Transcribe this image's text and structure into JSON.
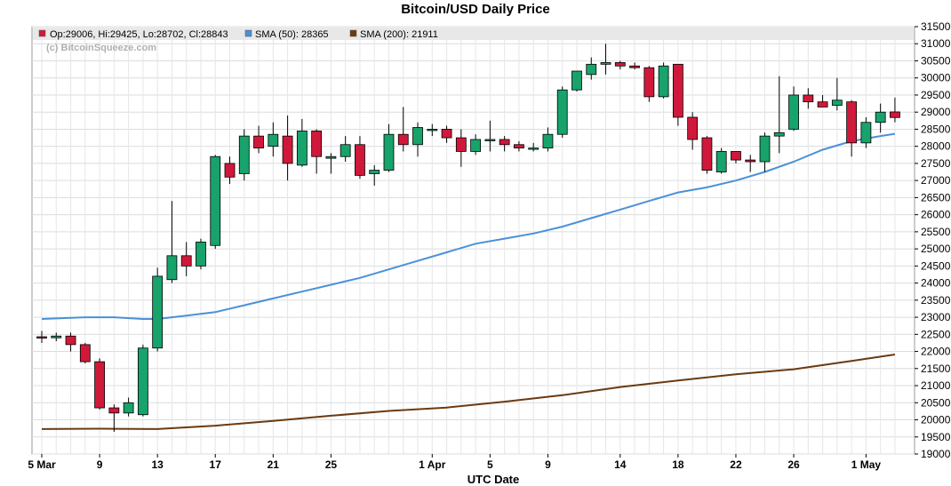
{
  "chart_data": {
    "type": "candlestick",
    "title": "Bitcoin/USD Daily Price",
    "xlabel": "UTC Date",
    "ylabel": "",
    "ylim": [
      19000,
      31500
    ],
    "grid": true,
    "watermark": "(c) BitcoinSqueeze.com",
    "legend": [
      {
        "label": "Op:29006, Hi:29425, Lo:28702, Cl:28843",
        "color": "#d0193a"
      },
      {
        "label": "SMA (50): 28365",
        "color": "#4a90d9"
      },
      {
        "label": "SMA (200): 21911",
        "color": "#6b3a10"
      }
    ],
    "yticks": [
      19000,
      19500,
      20000,
      20500,
      21000,
      21500,
      22000,
      22500,
      23000,
      23500,
      24000,
      24500,
      25000,
      25500,
      26000,
      26500,
      27000,
      27500,
      28000,
      28500,
      29000,
      29500,
      30000,
      30500,
      31000,
      31500
    ],
    "xticks": [
      {
        "label": "5 Mar",
        "index": 0
      },
      {
        "label": "9",
        "index": 4
      },
      {
        "label": "13",
        "index": 8
      },
      {
        "label": "17",
        "index": 12
      },
      {
        "label": "21",
        "index": 16
      },
      {
        "label": "25",
        "index": 20
      },
      {
        "label": "1 Apr",
        "index": 27
      },
      {
        "label": "5",
        "index": 31
      },
      {
        "label": "9",
        "index": 35
      },
      {
        "label": "14",
        "index": 40
      },
      {
        "label": "18",
        "index": 44
      },
      {
        "label": "22",
        "index": 48
      },
      {
        "label": "26",
        "index": 52
      },
      {
        "label": "1 May",
        "index": 57
      }
    ],
    "up_color": "#17a36b",
    "down_color": "#d0193a",
    "candles": [
      {
        "o": 22430,
        "h": 22600,
        "l": 22250,
        "c": 22400
      },
      {
        "o": 22400,
        "h": 22550,
        "l": 22300,
        "c": 22450
      },
      {
        "o": 22450,
        "h": 22550,
        "l": 22000,
        "c": 22200
      },
      {
        "o": 22200,
        "h": 22250,
        "l": 21650,
        "c": 21700
      },
      {
        "o": 21700,
        "h": 21800,
        "l": 20300,
        "c": 20350
      },
      {
        "o": 20350,
        "h": 20450,
        "l": 19650,
        "c": 20200
      },
      {
        "o": 20200,
        "h": 20650,
        "l": 20100,
        "c": 20500
      },
      {
        "o": 20150,
        "h": 22200,
        "l": 20100,
        "c": 22100
      },
      {
        "o": 22100,
        "h": 24450,
        "l": 22000,
        "c": 24200
      },
      {
        "o": 24100,
        "h": 26400,
        "l": 24000,
        "c": 24800
      },
      {
        "o": 24800,
        "h": 25200,
        "l": 24200,
        "c": 24500
      },
      {
        "o": 24500,
        "h": 25300,
        "l": 24400,
        "c": 25200
      },
      {
        "o": 25100,
        "h": 27750,
        "l": 25000,
        "c": 27700
      },
      {
        "o": 27500,
        "h": 27700,
        "l": 26900,
        "c": 27100
      },
      {
        "o": 27200,
        "h": 28500,
        "l": 27000,
        "c": 28300
      },
      {
        "o": 28300,
        "h": 28600,
        "l": 27800,
        "c": 27950
      },
      {
        "o": 28000,
        "h": 28700,
        "l": 27700,
        "c": 28350
      },
      {
        "o": 28300,
        "h": 28900,
        "l": 27000,
        "c": 27500
      },
      {
        "o": 27450,
        "h": 28800,
        "l": 27400,
        "c": 28450
      },
      {
        "o": 28450,
        "h": 28500,
        "l": 27200,
        "c": 27700
      },
      {
        "o": 27650,
        "h": 27800,
        "l": 27200,
        "c": 27700
      },
      {
        "o": 27700,
        "h": 28300,
        "l": 27550,
        "c": 28050
      },
      {
        "o": 28050,
        "h": 28300,
        "l": 27050,
        "c": 27150
      },
      {
        "o": 27200,
        "h": 27450,
        "l": 26850,
        "c": 27300
      },
      {
        "o": 27300,
        "h": 28650,
        "l": 27250,
        "c": 28350
      },
      {
        "o": 28350,
        "h": 29150,
        "l": 27850,
        "c": 28050
      },
      {
        "o": 28050,
        "h": 28700,
        "l": 27700,
        "c": 28550
      },
      {
        "o": 28500,
        "h": 28650,
        "l": 28300,
        "c": 28500
      },
      {
        "o": 28500,
        "h": 28600,
        "l": 28100,
        "c": 28250
      },
      {
        "o": 28250,
        "h": 28500,
        "l": 27400,
        "c": 27850
      },
      {
        "o": 27850,
        "h": 28350,
        "l": 27750,
        "c": 28200
      },
      {
        "o": 28200,
        "h": 28750,
        "l": 27850,
        "c": 28200
      },
      {
        "o": 28200,
        "h": 28300,
        "l": 27850,
        "c": 28050
      },
      {
        "o": 28050,
        "h": 28150,
        "l": 27850,
        "c": 27950
      },
      {
        "o": 27950,
        "h": 28100,
        "l": 27850,
        "c": 27950
      },
      {
        "o": 27950,
        "h": 28550,
        "l": 27850,
        "c": 28350
      },
      {
        "o": 28350,
        "h": 29750,
        "l": 28250,
        "c": 29650
      },
      {
        "o": 29650,
        "h": 30200,
        "l": 29600,
        "c": 30200
      },
      {
        "o": 30100,
        "h": 30600,
        "l": 29950,
        "c": 30400
      },
      {
        "o": 30400,
        "h": 31000,
        "l": 30100,
        "c": 30450
      },
      {
        "o": 30450,
        "h": 30500,
        "l": 30250,
        "c": 30350
      },
      {
        "o": 30350,
        "h": 30450,
        "l": 30250,
        "c": 30300
      },
      {
        "o": 30300,
        "h": 30350,
        "l": 29300,
        "c": 29450
      },
      {
        "o": 29450,
        "h": 30450,
        "l": 29400,
        "c": 30350
      },
      {
        "o": 30400,
        "h": 30400,
        "l": 28600,
        "c": 28850
      },
      {
        "o": 28850,
        "h": 29000,
        "l": 27900,
        "c": 28200
      },
      {
        "o": 28250,
        "h": 28300,
        "l": 27200,
        "c": 27300
      },
      {
        "o": 27250,
        "h": 27950,
        "l": 27200,
        "c": 27850
      },
      {
        "o": 27850,
        "h": 27850,
        "l": 27500,
        "c": 27600
      },
      {
        "o": 27600,
        "h": 27750,
        "l": 27250,
        "c": 27550
      },
      {
        "o": 27550,
        "h": 28400,
        "l": 27250,
        "c": 28300
      },
      {
        "o": 28300,
        "h": 30050,
        "l": 27800,
        "c": 28400
      },
      {
        "o": 28500,
        "h": 29750,
        "l": 28450,
        "c": 29500
      },
      {
        "o": 29500,
        "h": 29700,
        "l": 29100,
        "c": 29300
      },
      {
        "o": 29300,
        "h": 29500,
        "l": 29150,
        "c": 29150
      },
      {
        "o": 29200,
        "h": 30000,
        "l": 29050,
        "c": 29350
      },
      {
        "o": 29300,
        "h": 29350,
        "l": 27700,
        "c": 28100
      },
      {
        "o": 28100,
        "h": 28850,
        "l": 27950,
        "c": 28700
      },
      {
        "o": 28700,
        "h": 29250,
        "l": 28400,
        "c": 29000
      },
      {
        "o": 29006,
        "h": 29425,
        "l": 28702,
        "c": 28843
      }
    ],
    "series": [
      {
        "name": "SMA (50): 28365",
        "color": "#4a90d9",
        "points": [
          [
            0,
            22950
          ],
          [
            3,
            23000
          ],
          [
            5,
            23000
          ],
          [
            7,
            22950
          ],
          [
            8,
            22950
          ],
          [
            10,
            23050
          ],
          [
            12,
            23150
          ],
          [
            14,
            23350
          ],
          [
            16,
            23550
          ],
          [
            18,
            23750
          ],
          [
            20,
            23950
          ],
          [
            22,
            24150
          ],
          [
            24,
            24400
          ],
          [
            26,
            24650
          ],
          [
            28,
            24900
          ],
          [
            30,
            25150
          ],
          [
            32,
            25300
          ],
          [
            34,
            25450
          ],
          [
            36,
            25650
          ],
          [
            38,
            25900
          ],
          [
            40,
            26150
          ],
          [
            42,
            26400
          ],
          [
            44,
            26650
          ],
          [
            46,
            26800
          ],
          [
            48,
            27000
          ],
          [
            50,
            27250
          ],
          [
            52,
            27550
          ],
          [
            54,
            27900
          ],
          [
            56,
            28150
          ],
          [
            58,
            28300
          ],
          [
            59,
            28365
          ]
        ]
      },
      {
        "name": "SMA (200): 21911",
        "color": "#6b3a10",
        "points": [
          [
            0,
            19730
          ],
          [
            4,
            19740
          ],
          [
            8,
            19730
          ],
          [
            12,
            19830
          ],
          [
            16,
            19970
          ],
          [
            20,
            20120
          ],
          [
            24,
            20260
          ],
          [
            28,
            20360
          ],
          [
            32,
            20530
          ],
          [
            36,
            20720
          ],
          [
            40,
            20960
          ],
          [
            44,
            21150
          ],
          [
            48,
            21330
          ],
          [
            52,
            21480
          ],
          [
            56,
            21720
          ],
          [
            59,
            21911
          ]
        ]
      }
    ]
  }
}
